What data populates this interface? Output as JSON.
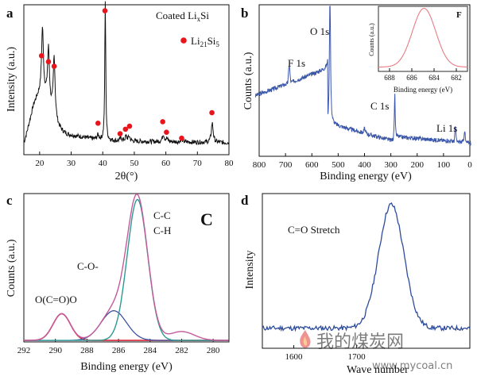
{
  "chart_data": [
    {
      "panel": "a",
      "type": "line",
      "xlabel": "2θ(°)",
      "ylabel": "Intensity (a.u.)",
      "xlim": [
        15,
        80
      ],
      "xticks": [
        "20",
        "30",
        "40",
        "50",
        "60",
        "70",
        "80"
      ],
      "line_color": "#111111",
      "legend": {
        "placement": "top-right",
        "items": [
          "Coated Li",
          "x",
          "Si",
          "Li",
          "21",
          "Si",
          "5"
        ]
      },
      "marker_color": "#e8161c",
      "peaks": [
        {
          "x": 20.9,
          "h": 0.44
        },
        {
          "x": 22.8,
          "h": 0.36
        },
        {
          "x": 24.6,
          "h": 0.4
        },
        {
          "x": 40.8,
          "h": 0.93
        },
        {
          "x": 38.5,
          "h": 0.03
        },
        {
          "x": 45.8,
          "h": 0.02
        },
        {
          "x": 47.4,
          "h": 0.03
        },
        {
          "x": 48.4,
          "h": 0.03
        },
        {
          "x": 59.2,
          "h": 0.05
        },
        {
          "x": 60.3,
          "h": 0.02
        },
        {
          "x": 65.0,
          "h": 0.02
        },
        {
          "x": 74.7,
          "h": 0.13
        }
      ],
      "markers": [
        {
          "x": 20.6,
          "y": 0.66
        },
        {
          "x": 22.8,
          "y": 0.62
        },
        {
          "x": 24.6,
          "y": 0.59
        },
        {
          "x": 40.7,
          "y": 0.96
        },
        {
          "x": 38.5,
          "y": 0.21
        },
        {
          "x": 45.5,
          "y": 0.14
        },
        {
          "x": 47.2,
          "y": 0.17
        },
        {
          "x": 48.5,
          "y": 0.19
        },
        {
          "x": 59.0,
          "y": 0.22
        },
        {
          "x": 60.2,
          "y": 0.15
        },
        {
          "x": 65.0,
          "y": 0.11
        },
        {
          "x": 74.6,
          "y": 0.28
        }
      ]
    },
    {
      "panel": "b",
      "type": "line",
      "xlabel": "Binding energy (eV)",
      "ylabel": "Counts (a.u.)",
      "xlim": [
        800,
        0
      ],
      "xticks": [
        "800",
        "700",
        "600",
        "500",
        "400",
        "300",
        "200",
        "100",
        "0"
      ],
      "line_color": "#3a56a8",
      "peak_labels": [
        {
          "text": "O 1s",
          "x": 531
        },
        {
          "text": "F 1s",
          "x": 686
        },
        {
          "text": "C 1s",
          "x": 285
        },
        {
          "text": "Li 1s",
          "x": 55
        }
      ],
      "inset": {
        "title": "F",
        "xlabel": "Binding energy (eV)",
        "ylabel": "Counts (a.u.)",
        "xlim": [
          689,
          681
        ],
        "xticks": [
          "688",
          "686",
          "684",
          "682"
        ],
        "line_color": "#e87c84",
        "peak_center": 684.9,
        "peak_sigma": 1.05
      }
    },
    {
      "panel": "c",
      "type": "line",
      "title": "C",
      "xlabel": "Binding energy (eV)",
      "ylabel": "Counts (a.u.)",
      "xlim": [
        292,
        279
      ],
      "xticks": [
        "292",
        "290",
        "288",
        "286",
        "284",
        "282",
        "280"
      ],
      "components": [
        {
          "label": "O(C=O)O",
          "center": 289.6,
          "height": 0.18,
          "sigma": 0.55,
          "color": "#d7283b"
        },
        {
          "label": "C-O-",
          "center": 286.3,
          "height": 0.2,
          "sigma": 0.8,
          "color": "#3b53a3"
        },
        {
          "label": "C-C",
          "label2": "C-H",
          "center": 284.8,
          "height": 0.95,
          "sigma": 0.65,
          "color": "#2a9a92"
        }
      ],
      "envelope_color": "#c35a9c"
    },
    {
      "panel": "d",
      "type": "line",
      "xlabel": "Wave number",
      "ylabel": "Intensity",
      "annotation": "C=O Stretch",
      "xlim": [
        1550,
        1880
      ],
      "xticks": [
        "1600",
        "1700"
      ],
      "line_color": "#2e4c9c",
      "peak_center": 1755,
      "peak_sigma": 20
    }
  ],
  "watermark": {
    "text": "我的煤炭网",
    "url": "www.mycoal.cn"
  }
}
